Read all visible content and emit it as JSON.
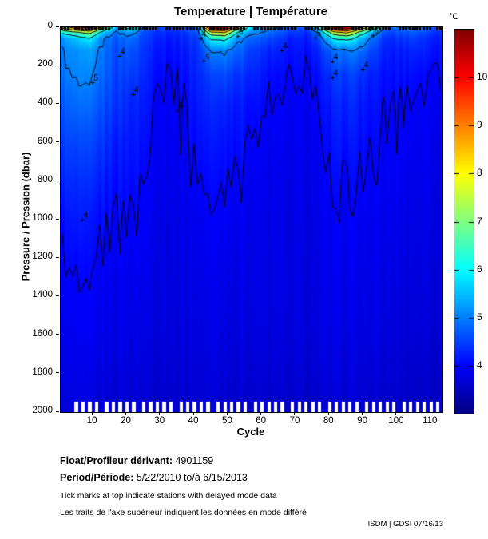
{
  "title": "Temperature | Température",
  "x_axis": {
    "label": "Cycle",
    "min": 0.5,
    "max": 113.5,
    "ticks": [
      10,
      20,
      30,
      40,
      50,
      60,
      70,
      80,
      90,
      100,
      110
    ]
  },
  "y_axis": {
    "label": "Pressure / Pression (dbar)",
    "min": 0,
    "max": 2000,
    "ticks": [
      0,
      200,
      400,
      600,
      800,
      1000,
      1200,
      1400,
      1600,
      1800,
      2000
    ]
  },
  "colorbar": {
    "units": "°C",
    "min": 3,
    "max": 11,
    "ticks": [
      4,
      5,
      6,
      7,
      8,
      9,
      10
    ]
  },
  "footer": {
    "float_label": "Float/Profileur dérivant:",
    "float_value": "4901159",
    "period_label": "Period/Période:",
    "period_value": "5/22/2010 to/à 6/15/2013",
    "note_en": "Tick marks at top indicate stations with delayed mode data",
    "note_fr": "Les traits de l'axe supérieur indiquent les données en mode différé",
    "stamp": "ISDM | GDSI 07/16/13"
  },
  "chart_data": {
    "type": "heatmap",
    "title": "Temperature | Température",
    "xlabel": "Cycle",
    "ylabel": "Pressure / Pression (dbar)",
    "value_units": "°C",
    "color_range": [
      3,
      11
    ],
    "colormap": "jet",
    "x_cycles": [
      1,
      5,
      9,
      13,
      17,
      21,
      25,
      29,
      33,
      37,
      41,
      45,
      49,
      53,
      57,
      61,
      65,
      69,
      73,
      77,
      81,
      85,
      89,
      93,
      97,
      101,
      105,
      109,
      113
    ],
    "y_pressures_dbar": [
      0,
      10,
      30,
      60,
      120,
      250,
      400,
      600,
      800,
      1000,
      1300,
      1600,
      1850,
      2000
    ],
    "temperature_c": [
      [
        8.5,
        9.5,
        10.5,
        7.5,
        5.5,
        6.5,
        5.0,
        4.6,
        4.5,
        4.8,
        5.0,
        10.8,
        11.0,
        7.5,
        5.6,
        5.4,
        5.0,
        4.7,
        4.6,
        6.5,
        10.8,
        11.2,
        9.5,
        6.8,
        4.8,
        5.0,
        5.2,
        4.8,
        4.6
      ],
      [
        7.5,
        8.5,
        9.0,
        6.5,
        5.2,
        5.8,
        4.8,
        4.5,
        4.4,
        4.6,
        4.9,
        9.5,
        9.8,
        6.8,
        5.4,
        5.1,
        4.8,
        4.6,
        4.5,
        5.8,
        9.2,
        10.0,
        8.2,
        6.0,
        4.7,
        4.8,
        5.0,
        4.7,
        4.5
      ],
      [
        6.0,
        6.5,
        7.0,
        5.5,
        4.9,
        5.2,
        4.6,
        4.4,
        4.3,
        4.4,
        4.7,
        7.5,
        7.8,
        5.8,
        5.1,
        4.9,
        4.6,
        4.4,
        4.3,
        5.0,
        7.2,
        8.0,
        6.5,
        5.2,
        4.5,
        4.6,
        4.7,
        4.5,
        4.3
      ],
      [
        5.2,
        5.5,
        5.8,
        5.0,
        4.7,
        4.9,
        4.5,
        4.3,
        4.2,
        4.3,
        4.5,
        6.0,
        6.2,
        5.1,
        4.8,
        4.6,
        4.4,
        4.2,
        4.2,
        4.6,
        5.8,
        6.2,
        5.5,
        4.8,
        4.3,
        4.4,
        4.5,
        4.3,
        4.2
      ],
      [
        5.0,
        5.1,
        5.2,
        4.9,
        4.6,
        4.7,
        4.4,
        4.2,
        4.1,
        4.2,
        4.4,
        5.0,
        5.1,
        4.8,
        4.5,
        4.3,
        4.2,
        4.1,
        4.1,
        4.3,
        4.8,
        5.0,
        4.9,
        4.5,
        4.2,
        4.2,
        4.3,
        4.2,
        4.1
      ],
      [
        4.9,
        5.0,
        5.0,
        4.8,
        4.5,
        4.5,
        4.3,
        4.1,
        4.0,
        4.1,
        4.3,
        4.5,
        4.6,
        4.4,
        4.3,
        4.1,
        4.0,
        4.0,
        4.0,
        4.1,
        4.4,
        4.5,
        4.4,
        4.2,
        4.1,
        4.1,
        4.1,
        4.0,
        4.0
      ],
      [
        4.7,
        4.8,
        4.8,
        4.6,
        4.4,
        4.3,
        4.2,
        4.0,
        3.95,
        4.0,
        4.2,
        4.3,
        4.3,
        4.2,
        4.1,
        4.0,
        3.95,
        3.9,
        3.9,
        4.0,
        4.2,
        4.3,
        4.2,
        4.1,
        4.0,
        4.0,
        4.0,
        3.95,
        3.9
      ],
      [
        4.5,
        4.5,
        4.5,
        4.4,
        4.2,
        4.2,
        4.1,
        3.95,
        3.9,
        3.95,
        4.1,
        4.15,
        4.15,
        4.1,
        4.0,
        3.9,
        3.85,
        3.85,
        3.85,
        3.9,
        4.1,
        4.15,
        4.1,
        4.0,
        3.95,
        3.95,
        3.9,
        3.9,
        3.85
      ],
      [
        4.3,
        4.3,
        4.3,
        4.2,
        4.1,
        4.1,
        4.0,
        3.9,
        3.85,
        3.9,
        4.0,
        4.05,
        4.05,
        4.0,
        3.9,
        3.85,
        3.8,
        3.8,
        3.8,
        3.85,
        4.0,
        4.0,
        4.0,
        3.95,
        3.9,
        3.9,
        3.85,
        3.85,
        3.8
      ],
      [
        4.1,
        4.15,
        4.1,
        4.05,
        4.0,
        4.0,
        3.95,
        3.85,
        3.8,
        3.85,
        3.9,
        3.95,
        3.95,
        3.9,
        3.85,
        3.8,
        3.78,
        3.78,
        3.78,
        3.8,
        3.9,
        3.95,
        3.9,
        3.85,
        3.85,
        3.82,
        3.8,
        3.8,
        3.78
      ],
      [
        3.95,
        3.95,
        3.95,
        3.9,
        3.88,
        3.88,
        3.85,
        3.8,
        3.78,
        3.78,
        3.82,
        3.85,
        3.85,
        3.82,
        3.8,
        3.76,
        3.75,
        3.75,
        3.75,
        3.76,
        3.82,
        3.85,
        3.82,
        3.8,
        3.78,
        3.76,
        3.75,
        3.75,
        3.74
      ],
      [
        3.85,
        3.85,
        3.85,
        3.82,
        3.8,
        3.8,
        3.78,
        3.75,
        3.73,
        3.74,
        3.76,
        3.78,
        3.78,
        3.76,
        3.74,
        3.72,
        3.7,
        3.7,
        3.7,
        3.72,
        3.76,
        3.78,
        3.76,
        3.74,
        3.72,
        3.7,
        3.7,
        3.68,
        3.68
      ],
      [
        3.75,
        3.75,
        3.75,
        3.73,
        3.72,
        3.72,
        3.7,
        3.68,
        3.66,
        3.67,
        3.7,
        3.72,
        3.7,
        3.68,
        3.66,
        3.64,
        3.63,
        3.63,
        3.63,
        3.64,
        3.68,
        3.7,
        3.68,
        3.66,
        3.64,
        3.63,
        3.62,
        3.6,
        3.6
      ],
      [
        3.7,
        3.7,
        3.7,
        3.68,
        3.66,
        3.66,
        3.65,
        3.62,
        3.6,
        3.6,
        3.64,
        3.66,
        3.64,
        3.62,
        3.6,
        3.58,
        3.57,
        3.57,
        3.57,
        3.58,
        3.62,
        3.64,
        3.62,
        3.6,
        3.58,
        3.57,
        3.56,
        3.55,
        3.55
      ]
    ],
    "contour_levels": [
      4,
      5,
      6,
      7,
      8,
      9,
      10
    ],
    "contour_labels": [
      {
        "level": 5,
        "cycle": 10,
        "pressure": 285
      },
      {
        "level": 4,
        "cycle": 7,
        "pressure": 1000
      },
      {
        "level": 4,
        "cycle": 18,
        "pressure": 150
      },
      {
        "level": 4,
        "cycle": 22,
        "pressure": 350
      },
      {
        "level": 4,
        "cycle": 35,
        "pressure": 430
      },
      {
        "level": 4,
        "cycle": 42,
        "pressure": 60
      },
      {
        "level": 5,
        "cycle": 53,
        "pressure": 45
      },
      {
        "level": 4,
        "cycle": 43,
        "pressure": 175
      },
      {
        "level": 4,
        "cycle": 66,
        "pressure": 120
      },
      {
        "level": 5,
        "cycle": 76,
        "pressure": 55
      },
      {
        "level": 6,
        "cycle": 93,
        "pressure": 40
      },
      {
        "level": 4,
        "cycle": 81,
        "pressure": 180
      },
      {
        "level": 4,
        "cycle": 81,
        "pressure": 260
      },
      {
        "level": 4,
        "cycle": 90,
        "pressure": 220
      }
    ],
    "shallow_profile_cycles": [
      5,
      7,
      9,
      11,
      14,
      16,
      18,
      20,
      22,
      25,
      27,
      29,
      31,
      33,
      36,
      38,
      40,
      42,
      44,
      47,
      49,
      51,
      53,
      55,
      58,
      60,
      62,
      64,
      66,
      69,
      71,
      73,
      75,
      77,
      80,
      82,
      84,
      86,
      88,
      91,
      93,
      95,
      97,
      99,
      102,
      104,
      106,
      108,
      110,
      112
    ],
    "shallow_cutoff_dbar": 1945,
    "realtime_cycles": [
      4,
      16,
      17,
      30,
      31,
      44,
      56,
      57,
      71,
      72,
      85,
      86,
      99,
      100,
      111
    ],
    "stripe_jitter_c": 0.08
  }
}
